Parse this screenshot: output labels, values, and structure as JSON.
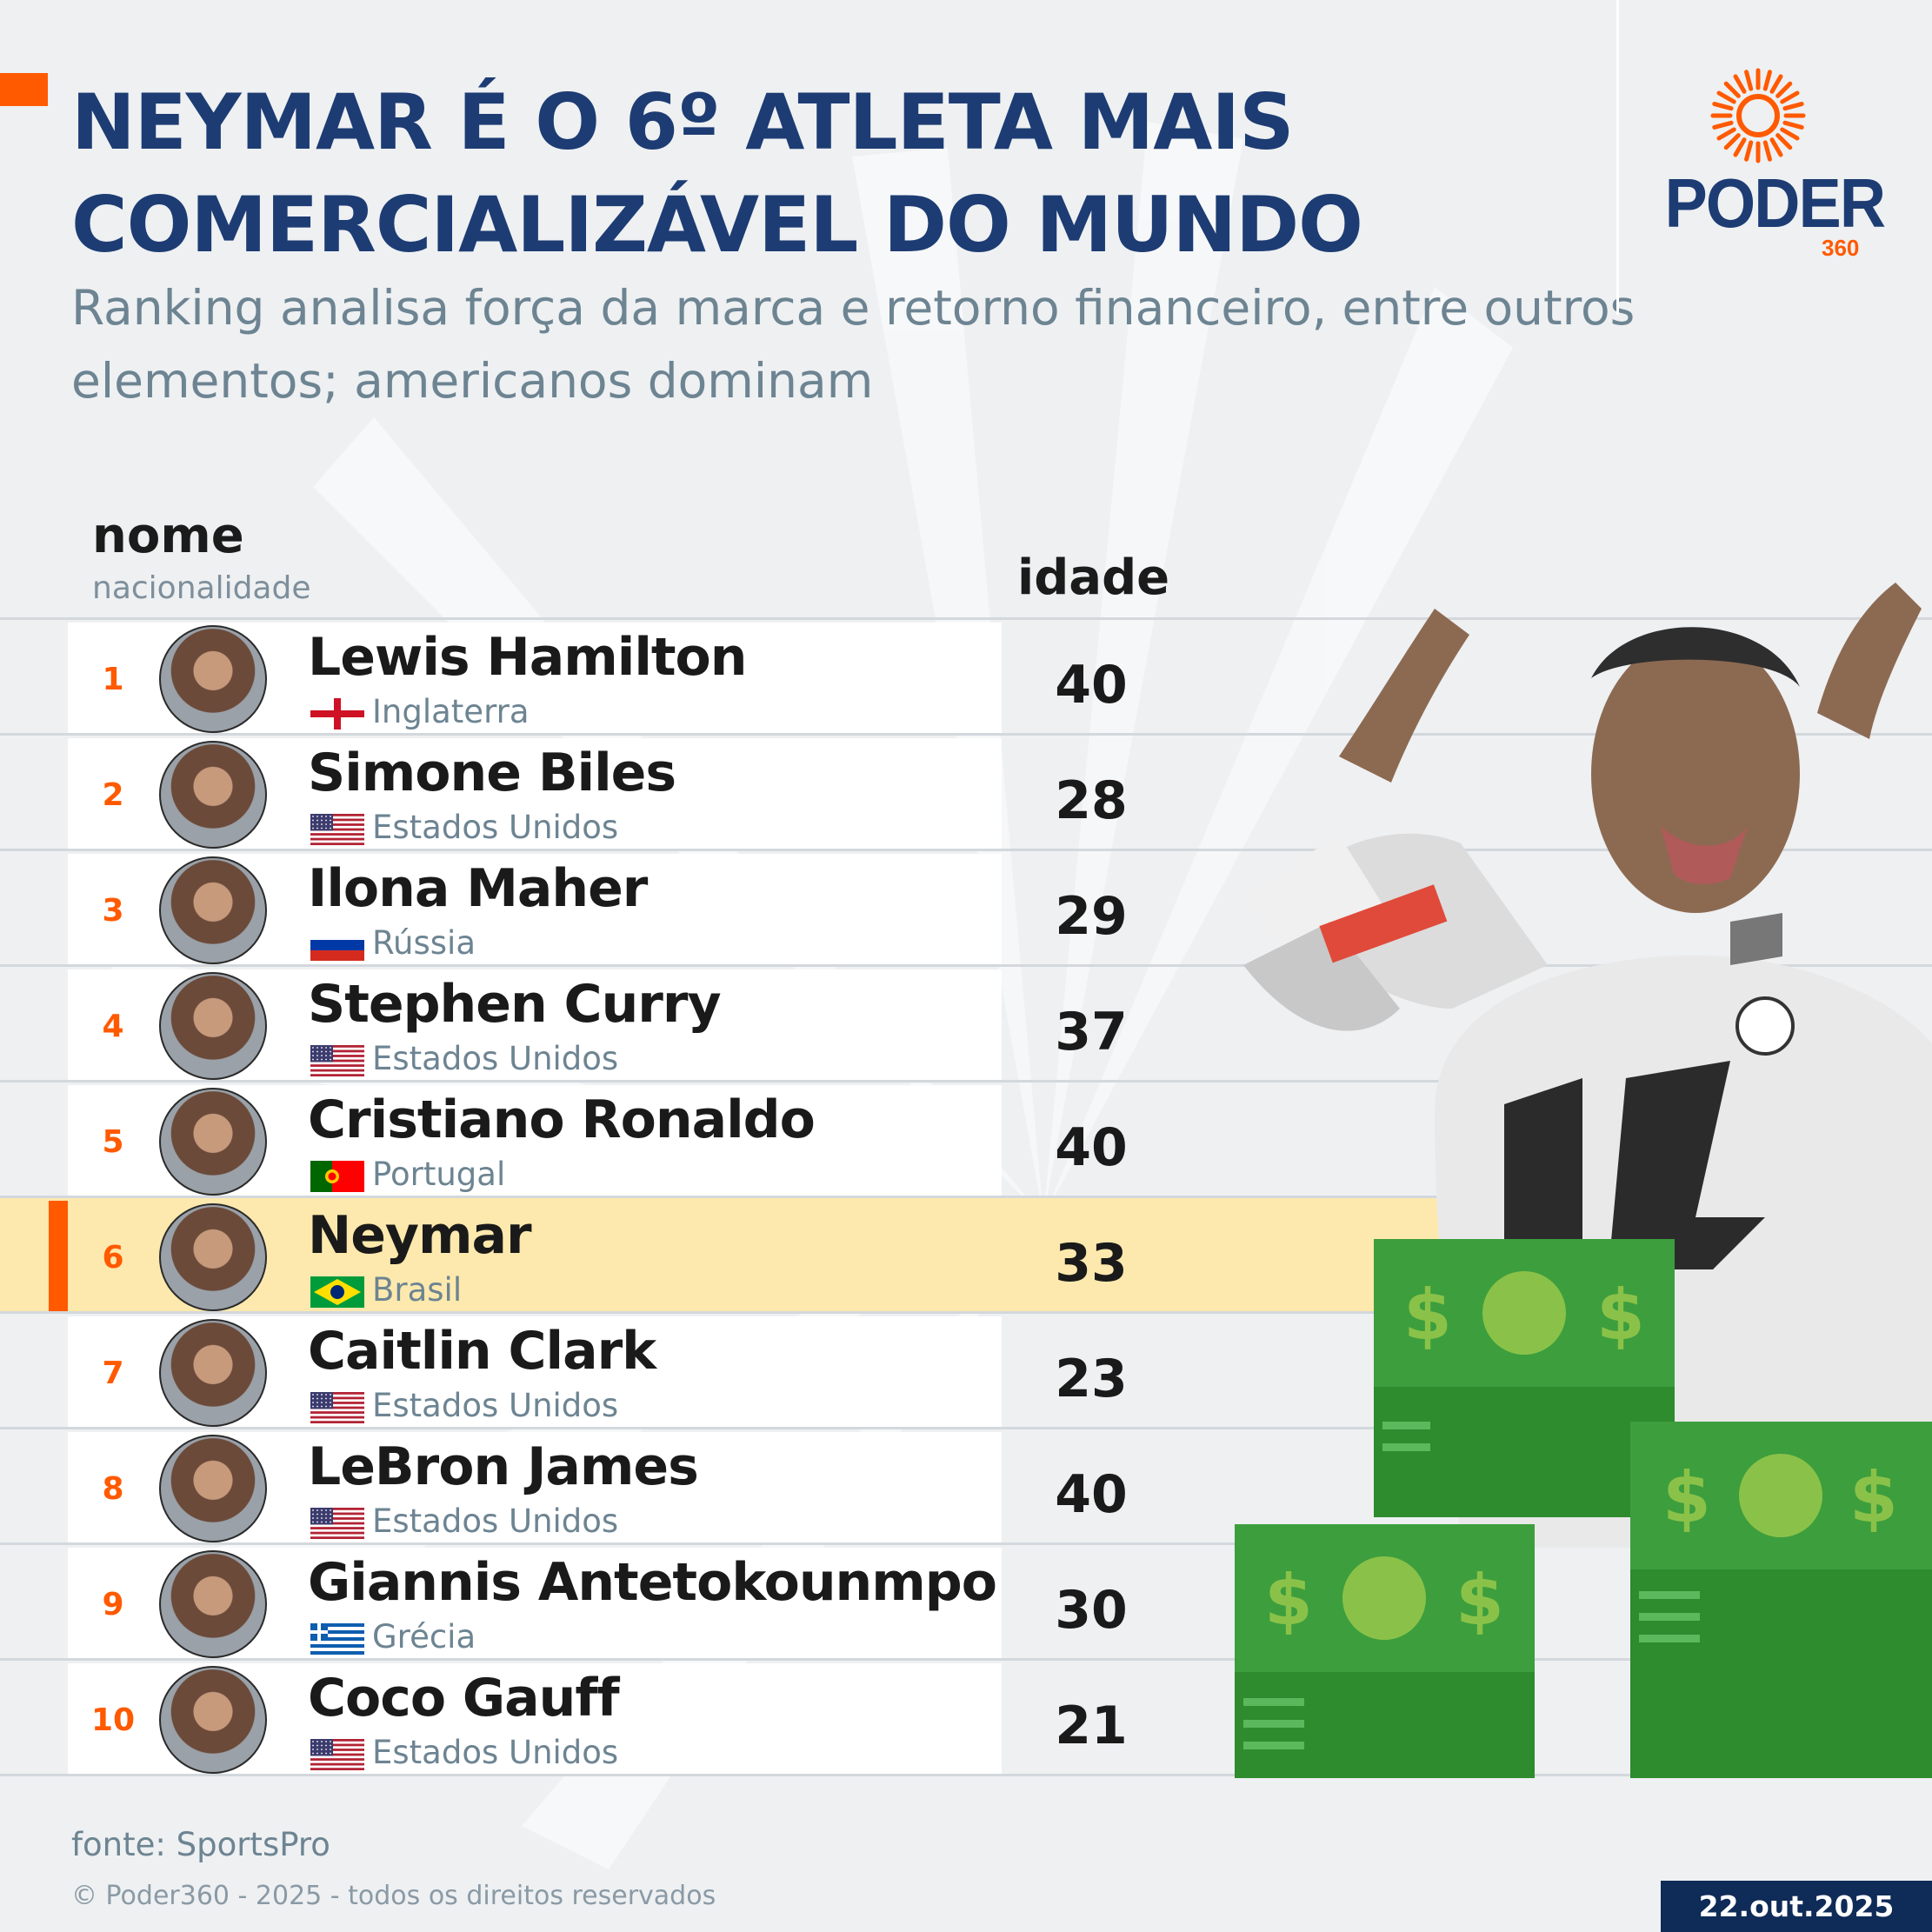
{
  "title": "NEYMAR É O 6º ATLETA MAIS COMERCIALIZÁVEL DO MUNDO",
  "subtitle": "Ranking analisa força da marca e retorno financeiro, entre outros elementos; americanos dominam",
  "logo": {
    "word": "PODER",
    "number": "360"
  },
  "columns": {
    "name": "nome",
    "nationality": "nacionalidade",
    "age": "idade"
  },
  "colors": {
    "title": "#1d3c73",
    "accent": "#ff5a00",
    "highlight": "#fde9ad",
    "badge": "#0f2b57"
  },
  "highlighted_rank": 6,
  "chart_data": {
    "type": "table",
    "columns": [
      "rank",
      "nome",
      "nacionalidade",
      "idade"
    ],
    "rows": [
      {
        "rank": "1",
        "name": "Lewis Hamilton",
        "nationality": "Inglaterra",
        "flag": "england",
        "age": "40"
      },
      {
        "rank": "2",
        "name": "Simone Biles",
        "nationality": "Estados Unidos",
        "flag": "usa",
        "age": "28"
      },
      {
        "rank": "3",
        "name": "Ilona Maher",
        "nationality": "Rússia",
        "flag": "russia",
        "age": "29"
      },
      {
        "rank": "4",
        "name": "Stephen Curry",
        "nationality": "Estados Unidos",
        "flag": "usa",
        "age": "37"
      },
      {
        "rank": "5",
        "name": "Cristiano Ronaldo",
        "nationality": "Portugal",
        "flag": "portugal",
        "age": "40"
      },
      {
        "rank": "6",
        "name": "Neymar",
        "nationality": "Brasil",
        "flag": "brazil",
        "age": "33"
      },
      {
        "rank": "7",
        "name": "Caitlin Clark",
        "nationality": "Estados Unidos",
        "flag": "usa",
        "age": "23"
      },
      {
        "rank": "8",
        "name": "LeBron James",
        "nationality": "Estados Unidos",
        "flag": "usa",
        "age": "40"
      },
      {
        "rank": "9",
        "name": "Giannis Antetokounmpo",
        "nationality": "Grécia",
        "flag": "greece",
        "age": "30"
      },
      {
        "rank": "10",
        "name": "Coco Gauff",
        "nationality": "Estados Unidos",
        "flag": "usa",
        "age": "21"
      }
    ]
  },
  "footer": {
    "source": "fonte: SportsPro",
    "copyright": "© Poder360 - 2025 - todos os direitos reservados",
    "date": "22.out.2025"
  }
}
